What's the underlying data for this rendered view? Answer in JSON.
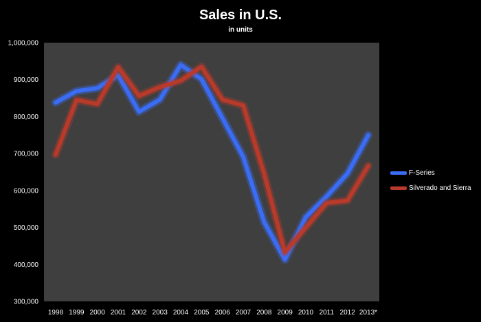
{
  "chart_data": {
    "type": "line",
    "title": "Sales in U.S.",
    "subtitle": "in units",
    "xlabel": "",
    "ylabel": "",
    "categories": [
      "1998",
      "1999",
      "2000",
      "2001",
      "2002",
      "2003",
      "2004",
      "2005",
      "2006",
      "2007",
      "2008",
      "2009",
      "2010",
      "2011",
      "2012",
      "2013*"
    ],
    "ylim": [
      300000,
      1000000
    ],
    "yticks": [
      300000,
      400000,
      500000,
      600000,
      700000,
      800000,
      900000,
      1000000
    ],
    "ytick_labels": [
      "300,000",
      "400,000",
      "500,000",
      "600,000",
      "700,000",
      "800,000",
      "900,000",
      "1,000,000"
    ],
    "grid": false,
    "legend_position": "right",
    "series": [
      {
        "name": "F-Series",
        "color": "#3a6cf4",
        "values": [
          838000,
          869000,
          877000,
          912000,
          813000,
          846000,
          940000,
          901000,
          796000,
          691000,
          515000,
          413000,
          528000,
          584000,
          646000,
          750000
        ]
      },
      {
        "name": "Silverado and Sierra",
        "color": "#b83a2a",
        "values": [
          697000,
          845000,
          834000,
          934000,
          856000,
          880000,
          897000,
          935000,
          846000,
          830000,
          646000,
          433000,
          500000,
          566000,
          573000,
          667000
        ]
      }
    ]
  },
  "colors": {
    "background": "#000000",
    "plot_area": "#3f3f3f",
    "text": "#ffffff"
  }
}
